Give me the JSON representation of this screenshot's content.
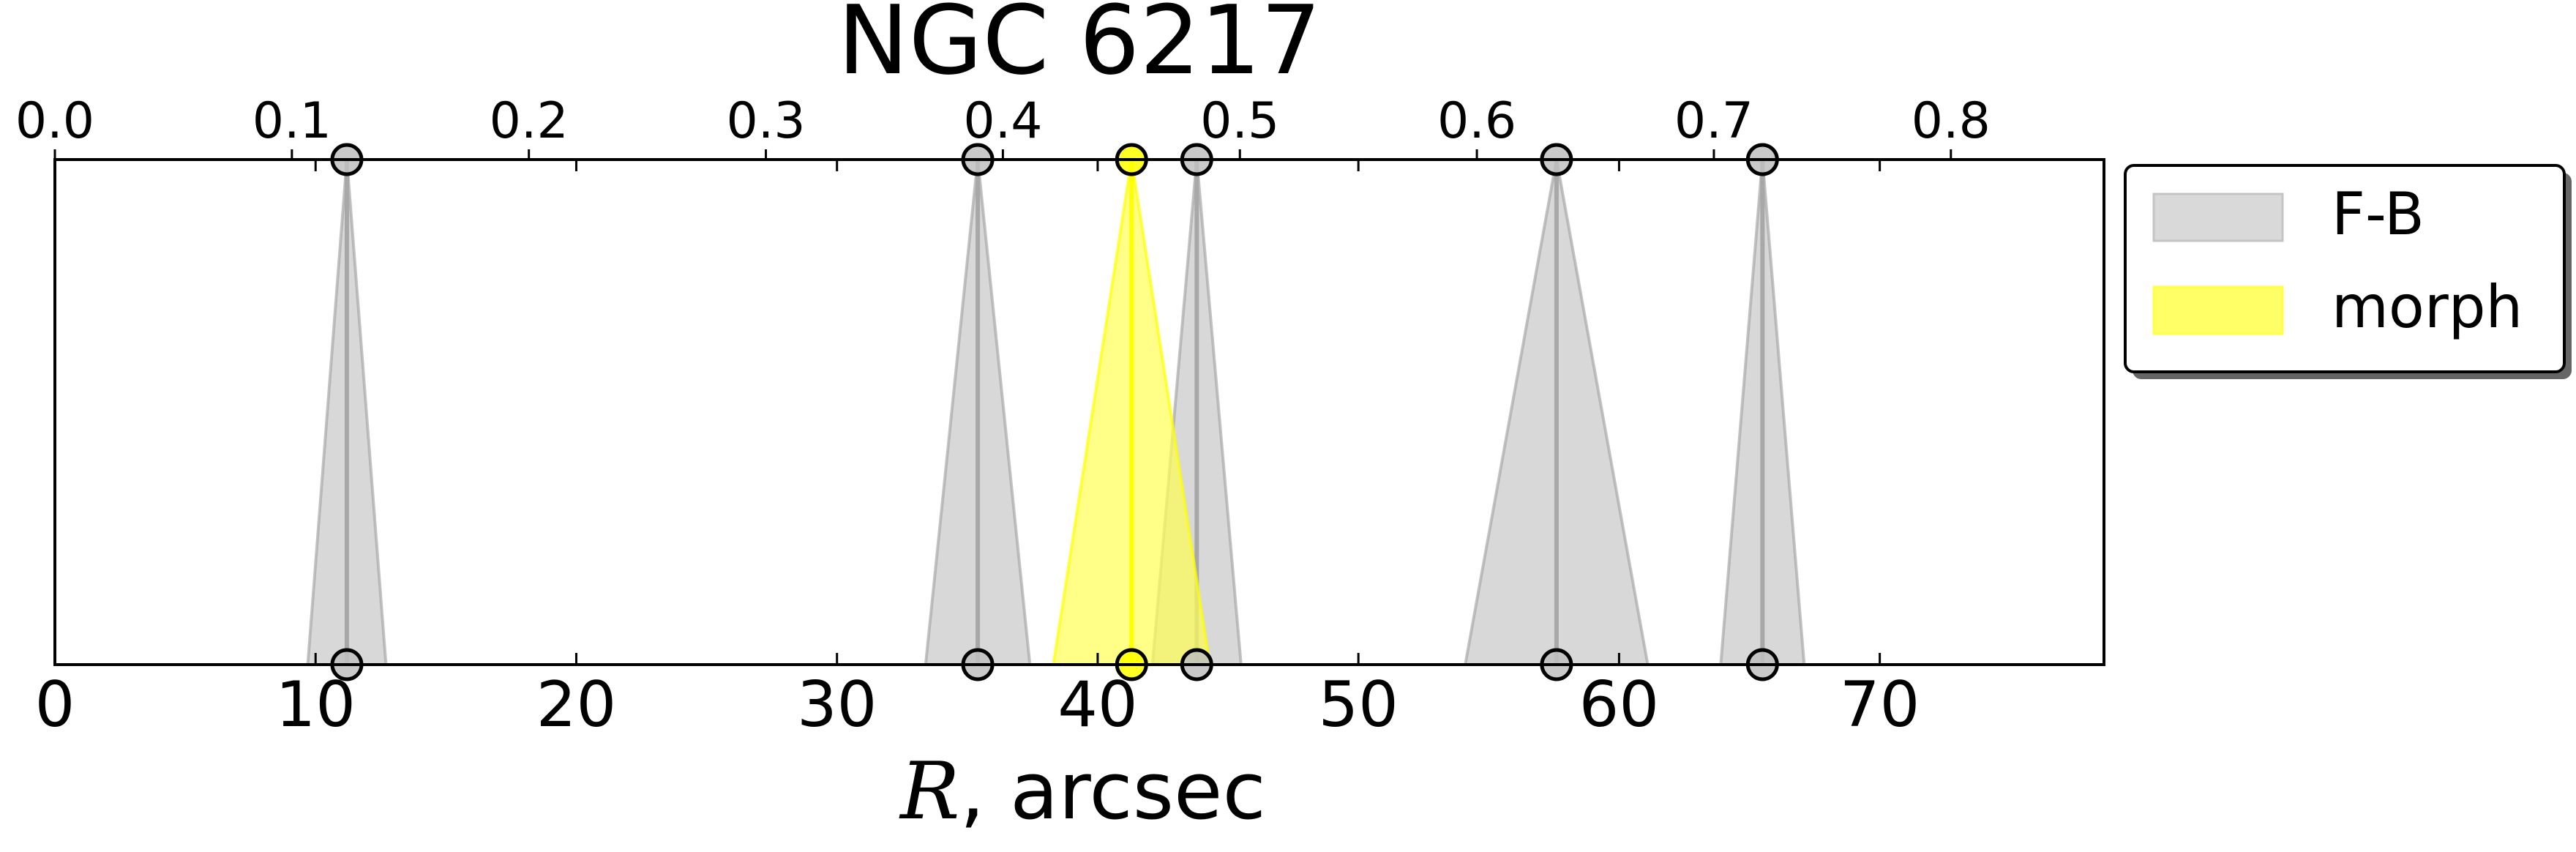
{
  "chart_data": {
    "type": "area",
    "title": "NGC 6217",
    "xlabel_symbol": "R",
    "xlabel_rest": ", arcsec",
    "xlim": [
      0,
      78.6
    ],
    "top_axis": {
      "ticks": [
        0.0,
        0.1,
        0.2,
        0.3,
        0.4,
        0.5,
        0.6,
        0.7,
        0.8
      ],
      "tick_labels": [
        "0.0",
        "0.1",
        "0.2",
        "0.3",
        "0.4",
        "0.5",
        "0.6",
        "0.7",
        "0.8"
      ],
      "units_per_bottom_unit": 0.011
    },
    "bottom_axis": {
      "ticks": [
        0,
        10,
        20,
        30,
        40,
        50,
        60,
        70
      ],
      "tick_labels": [
        "0",
        "10",
        "20",
        "30",
        "40",
        "50",
        "60",
        "70"
      ]
    },
    "grid": false,
    "legend_position": "upper right, outside",
    "series": [
      {
        "name": "F-B",
        "color": "#c8c8c8",
        "edge_color": "#a8a8a8",
        "features": [
          {
            "top_r": 11.2,
            "r": 11.2,
            "spread": 1.5
          },
          {
            "top_r": 35.4,
            "r": 35.4,
            "spread": 2.0
          },
          {
            "top_r": 43.8,
            "r": 43.8,
            "spread": 1.7
          },
          {
            "top_r": 57.6,
            "r": 57.6,
            "spread": 3.5
          },
          {
            "top_r": 65.5,
            "r": 65.5,
            "spread": 1.6
          }
        ]
      },
      {
        "name": "morph",
        "color": "#ffff55",
        "edge_color": "#ffff00",
        "features": [
          {
            "top_r": 41.3,
            "r": 41.3,
            "spread": 3.0
          }
        ]
      }
    ]
  }
}
